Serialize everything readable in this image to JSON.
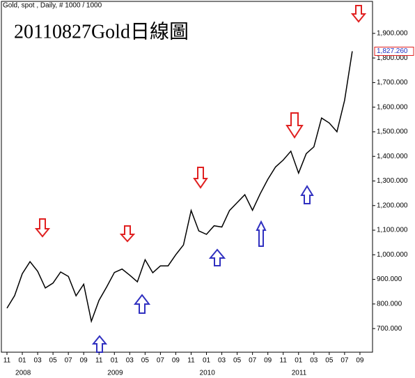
{
  "chart_data": {
    "type": "line",
    "header": "Gold, spot , Daily, # 1000 / 1000",
    "title": "20110827Gold日線圖",
    "x": [
      "2007-11",
      "2007-12",
      "2008-01",
      "2008-02",
      "2008-03",
      "2008-04",
      "2008-05",
      "2008-06",
      "2008-07",
      "2008-08",
      "2008-09",
      "2008-10",
      "2008-11",
      "2008-12",
      "2009-01",
      "2009-02",
      "2009-03",
      "2009-04",
      "2009-05",
      "2009-06",
      "2009-07",
      "2009-08",
      "2009-09",
      "2009-10",
      "2009-11",
      "2009-12",
      "2010-01",
      "2010-02",
      "2010-03",
      "2010-04",
      "2010-05",
      "2010-06",
      "2010-07",
      "2010-08",
      "2010-09",
      "2010-10",
      "2010-11",
      "2010-12",
      "2011-01",
      "2011-02",
      "2011-03",
      "2011-04",
      "2011-05",
      "2011-06",
      "2011-07",
      "2011-08"
    ],
    "series": [
      {
        "name": "Gold",
        "color": "#000000",
        "values": [
          783,
          834,
          923,
          972,
          933,
          865,
          885,
          930,
          912,
          833,
          880,
          730,
          815,
          870,
          928,
          942,
          917,
          890,
          980,
          927,
          955,
          955,
          1000,
          1040,
          1180,
          1097,
          1083,
          1118,
          1113,
          1180,
          1212,
          1244,
          1181,
          1248,
          1307,
          1357,
          1385,
          1421,
          1332,
          1411,
          1439,
          1556,
          1536,
          1500,
          1628,
          1827.26
        ]
      }
    ],
    "last_price": {
      "value": 1827.26,
      "label": "1,827.260"
    },
    "ylim": [
      604,
      2030
    ],
    "yticks": [
      {
        "value": 700,
        "label": "700.000"
      },
      {
        "value": 800,
        "label": "800.000"
      },
      {
        "value": 900,
        "label": "900.000"
      },
      {
        "value": 1000,
        "label": "1,000.000"
      },
      {
        "value": 1100,
        "label": "1,100.000"
      },
      {
        "value": 1200,
        "label": "1,200.000"
      },
      {
        "value": 1300,
        "label": "1,300.000"
      },
      {
        "value": 1400,
        "label": "1,400.000"
      },
      {
        "value": 1500,
        "label": "1,500.000"
      },
      {
        "value": 1600,
        "label": "1,600.000"
      },
      {
        "value": 1700,
        "label": "1,700.000"
      },
      {
        "value": 1800,
        "label": "1,800.000"
      },
      {
        "value": 1900,
        "label": "1,900.000"
      }
    ],
    "xticks": [
      {
        "value": "2007-11",
        "label": "11"
      },
      {
        "value": "2008-01",
        "label": "01"
      },
      {
        "value": "2008-03",
        "label": "03"
      },
      {
        "value": "2008-05",
        "label": "05"
      },
      {
        "value": "2008-07",
        "label": "07"
      },
      {
        "value": "2008-09",
        "label": "09"
      },
      {
        "value": "2008-11",
        "label": "11"
      },
      {
        "value": "2009-01",
        "label": "01"
      },
      {
        "value": "2009-03",
        "label": "03"
      },
      {
        "value": "2009-05",
        "label": "05"
      },
      {
        "value": "2009-07",
        "label": "07"
      },
      {
        "value": "2009-09",
        "label": "09"
      },
      {
        "value": "2009-11",
        "label": "11"
      },
      {
        "value": "2010-01",
        "label": "01"
      },
      {
        "value": "2010-03",
        "label": "03"
      },
      {
        "value": "2010-05",
        "label": "05"
      },
      {
        "value": "2010-07",
        "label": "07"
      },
      {
        "value": "2010-09",
        "label": "09"
      },
      {
        "value": "2010-11",
        "label": "11"
      },
      {
        "value": "2011-01",
        "label": "01"
      },
      {
        "value": "2011-03",
        "label": "03"
      },
      {
        "value": "2011-05",
        "label": "05"
      },
      {
        "value": "2011-07",
        "label": "07"
      },
      {
        "value": "2011-09",
        "label": "09"
      }
    ],
    "year_labels": [
      {
        "value": "2008-01",
        "label": "2008"
      },
      {
        "value": "2009-01",
        "label": "2009"
      },
      {
        "value": "2010-01",
        "label": "2010"
      },
      {
        "value": "2011-01",
        "label": "2011"
      }
    ]
  }
}
